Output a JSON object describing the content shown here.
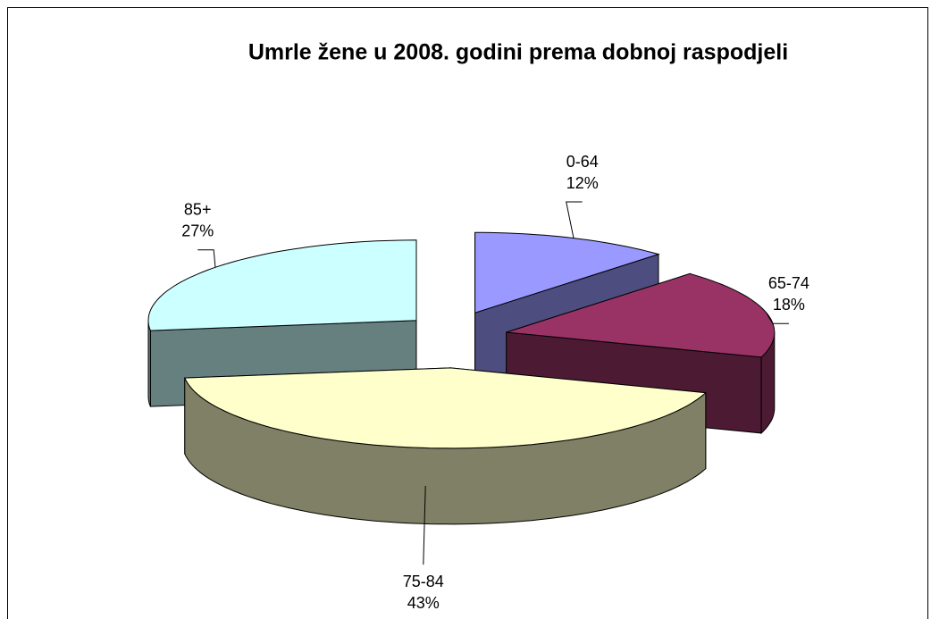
{
  "chart_data": {
    "type": "pie",
    "title": "Umrle žene u 2008. godini prema dobnoj raspodjeli",
    "categories": [
      "0-64",
      "65-74",
      "75-84",
      "85+"
    ],
    "values": [
      12,
      18,
      43,
      27
    ],
    "value_labels": [
      "12%",
      "18%",
      "43%",
      "27%"
    ],
    "colors": [
      "#9999ff",
      "#993366",
      "#ffffcc",
      "#ccffff"
    ],
    "three_d": true,
    "exploded": true
  }
}
